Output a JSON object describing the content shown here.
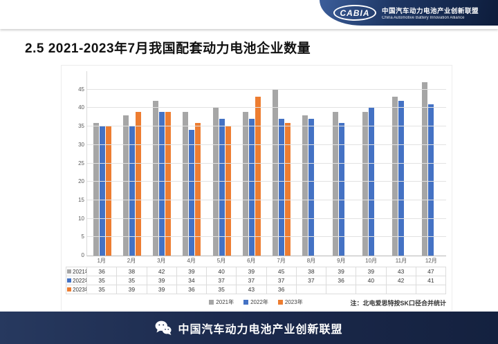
{
  "header": {
    "logo_text": "CABIA",
    "alliance_cn": "中国汽车动力电池产业创新联盟",
    "alliance_en": "China Automotive Battery Innovation Alliance"
  },
  "title": "2.5 2021-2023年7月我国配套动力电池企业数量",
  "chart_data": {
    "type": "bar",
    "title": "",
    "xlabel": "",
    "ylabel": "",
    "categories": [
      "1月",
      "2月",
      "3月",
      "4月",
      "5月",
      "6月",
      "7月",
      "8月",
      "9月",
      "10月",
      "11月",
      "12月"
    ],
    "series": [
      {
        "name": "2021年",
        "color": "#A6A6A6",
        "values": [
          36,
          38,
          42,
          39,
          40,
          39,
          45,
          38,
          39,
          39,
          43,
          47
        ]
      },
      {
        "name": "2022年",
        "color": "#4472C4",
        "values": [
          35,
          35,
          39,
          34,
          37,
          37,
          37,
          37,
          36,
          40,
          42,
          41
        ]
      },
      {
        "name": "2023年",
        "color": "#ED7D31",
        "values": [
          35,
          39,
          39,
          36,
          35,
          43,
          36,
          null,
          null,
          null,
          null,
          null
        ]
      }
    ],
    "ylim": [
      0,
      50
    ],
    "yticks": [
      0,
      5,
      10,
      15,
      20,
      25,
      30,
      35,
      40,
      45
    ],
    "grid": true,
    "legend_position": "bottom"
  },
  "note": "注：北电爱思特按SK口径合并统计",
  "footer": {
    "text": "中国汽车动力电池产业创新联盟"
  }
}
